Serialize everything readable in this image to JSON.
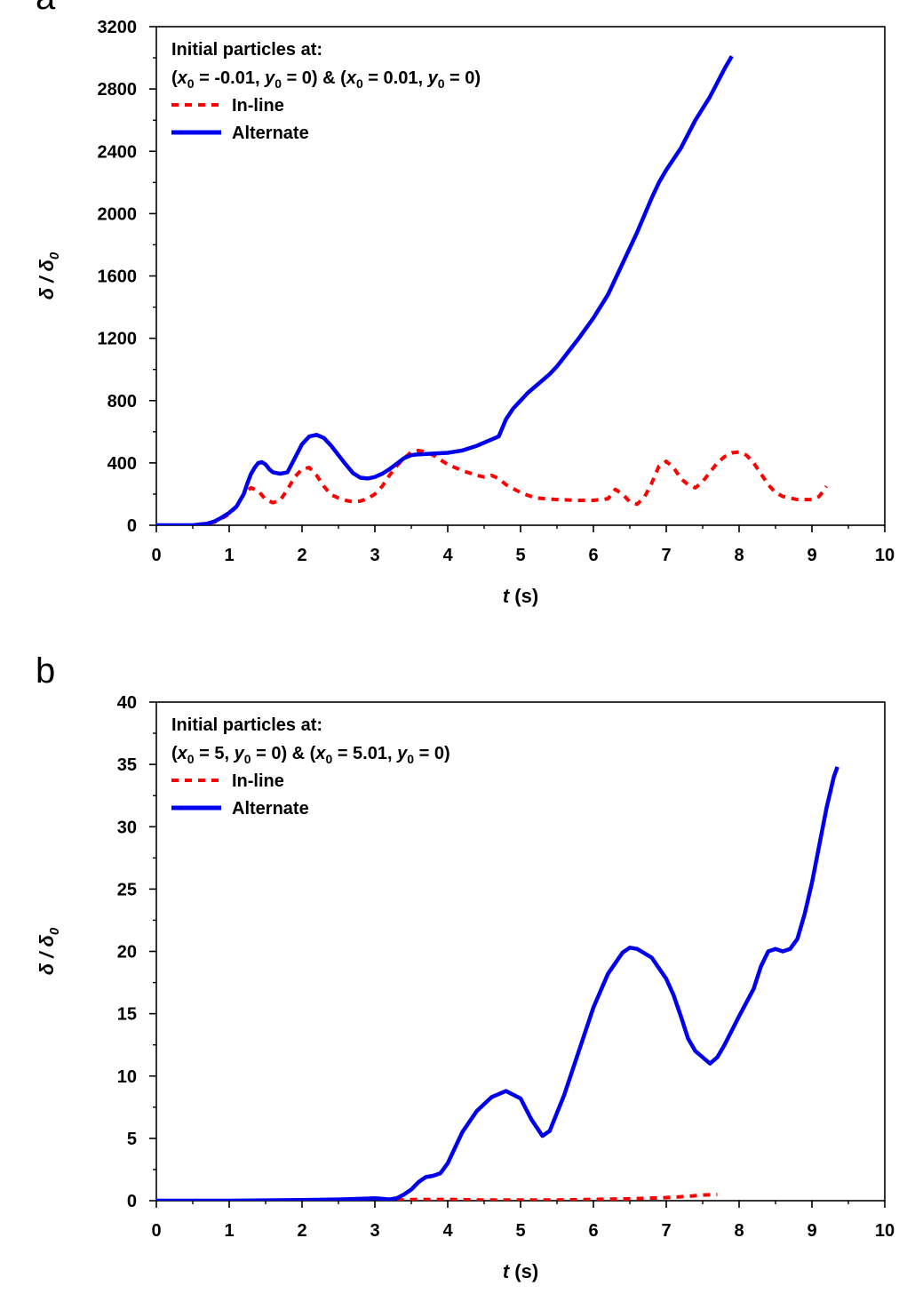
{
  "chart_data": [
    {
      "type": "line",
      "panel": "a",
      "xlabel_var": "t",
      "xlabel_unit": " (s)",
      "ylabel": "δ / δ0",
      "ylabel_main": "δ / δ",
      "ylabel_sub": "0",
      "xlim": [
        0,
        10
      ],
      "ylim": [
        0,
        3200
      ],
      "xticks": [
        0,
        1,
        2,
        3,
        4,
        5,
        6,
        7,
        8,
        9,
        10
      ],
      "yticks": [
        0,
        400,
        800,
        1200,
        1600,
        2000,
        2400,
        2800,
        3200
      ],
      "legend_title": "Initial particles at:",
      "legend_condition": [
        "(",
        "x",
        "0",
        " = -0.01, ",
        "y",
        "0",
        " = 0) & (",
        "x",
        "0",
        " = 0.01, ",
        "y",
        "0",
        " = 0)"
      ],
      "series": [
        {
          "name": "In-line",
          "color": "#ff0000",
          "style": "dotted",
          "x": [
            0,
            0.5,
            0.8,
            1.0,
            1.1,
            1.2,
            1.3,
            1.4,
            1.5,
            1.6,
            1.7,
            1.8,
            1.9,
            2.0,
            2.1,
            2.2,
            2.3,
            2.4,
            2.5,
            2.6,
            2.7,
            2.8,
            2.9,
            3.0,
            3.1,
            3.2,
            3.3,
            3.4,
            3.5,
            3.6,
            3.7,
            3.8,
            3.9,
            4.0,
            4.2,
            4.4,
            4.5,
            4.6,
            4.7,
            4.8,
            5.0,
            5.2,
            5.5,
            5.8,
            6.0,
            6.2,
            6.3,
            6.4,
            6.5,
            6.6,
            6.7,
            6.8,
            6.9,
            7.0,
            7.1,
            7.2,
            7.3,
            7.4,
            7.5,
            7.6,
            7.7,
            7.8,
            7.9,
            8.0,
            8.1,
            8.2,
            8.3,
            8.4,
            8.5,
            8.6,
            8.8,
            9.0,
            9.1,
            9.2
          ],
          "values": [
            0,
            0,
            20,
            70,
            120,
            200,
            240,
            220,
            165,
            145,
            160,
            230,
            310,
            360,
            370,
            320,
            250,
            195,
            175,
            160,
            150,
            155,
            170,
            200,
            250,
            320,
            380,
            430,
            470,
            480,
            470,
            450,
            420,
            390,
            350,
            320,
            310,
            320,
            300,
            260,
            210,
            175,
            165,
            160,
            160,
            170,
            230,
            200,
            150,
            135,
            180,
            270,
            380,
            410,
            370,
            300,
            260,
            240,
            280,
            340,
            400,
            440,
            465,
            470,
            450,
            400,
            330,
            260,
            210,
            185,
            165,
            165,
            185,
            250
          ]
        },
        {
          "name": "Alternate",
          "color": "#0000ee",
          "style": "solid",
          "x": [
            0,
            0.5,
            0.7,
            0.8,
            0.9,
            1.0,
            1.1,
            1.2,
            1.25,
            1.3,
            1.35,
            1.4,
            1.45,
            1.5,
            1.55,
            1.6,
            1.7,
            1.8,
            1.9,
            2.0,
            2.1,
            2.2,
            2.3,
            2.4,
            2.5,
            2.6,
            2.7,
            2.8,
            2.9,
            3.0,
            3.1,
            3.2,
            3.3,
            3.4,
            3.5,
            3.6,
            3.8,
            4.0,
            4.2,
            4.4,
            4.5,
            4.6,
            4.7,
            4.8,
            4.9,
            5.0,
            5.1,
            5.2,
            5.3,
            5.4,
            5.5,
            5.6,
            5.8,
            6.0,
            6.2,
            6.4,
            6.6,
            6.8,
            6.9,
            7.0,
            7.2,
            7.4,
            7.6,
            7.8,
            7.9
          ],
          "values": [
            0,
            0,
            10,
            25,
            50,
            80,
            120,
            200,
            270,
            330,
            370,
            400,
            405,
            390,
            360,
            340,
            330,
            340,
            430,
            520,
            570,
            580,
            560,
            510,
            450,
            390,
            335,
            305,
            300,
            310,
            330,
            360,
            395,
            430,
            450,
            455,
            460,
            465,
            480,
            510,
            530,
            550,
            570,
            680,
            750,
            800,
            850,
            890,
            930,
            970,
            1020,
            1080,
            1200,
            1330,
            1480,
            1680,
            1880,
            2100,
            2200,
            2280,
            2420,
            2600,
            2750,
            2930,
            3010
          ]
        }
      ]
    },
    {
      "type": "line",
      "panel": "b",
      "xlabel_var": "t",
      "xlabel_unit": " (s)",
      "ylabel": "δ / δ0",
      "ylabel_main": "δ / δ",
      "ylabel_sub": "0",
      "xlim": [
        0,
        10
      ],
      "ylim": [
        0,
        40
      ],
      "xticks": [
        0,
        1,
        2,
        3,
        4,
        5,
        6,
        7,
        8,
        9,
        10
      ],
      "yticks": [
        0,
        5,
        10,
        15,
        20,
        25,
        30,
        35,
        40
      ],
      "legend_title": "Initial particles at:",
      "legend_condition": [
        "(",
        "x",
        "0",
        " = 5, ",
        "y",
        "0",
        " = 0) & (",
        "x",
        "0",
        " = 5.01, ",
        "y",
        "0",
        " = 0)"
      ],
      "series": [
        {
          "name": "In-line",
          "color": "#ff0000",
          "style": "dotted",
          "x": [
            3.3,
            3.6,
            4.0,
            4.5,
            5.0,
            5.5,
            6.0,
            6.5,
            7.0,
            7.3,
            7.5,
            7.7
          ],
          "values": [
            0.05,
            0.1,
            0.1,
            0.05,
            0.05,
            0.05,
            0.1,
            0.15,
            0.25,
            0.35,
            0.45,
            0.5
          ]
        },
        {
          "name": "Alternate",
          "color": "#0000ee",
          "style": "solid",
          "x": [
            0,
            1,
            2,
            2.5,
            2.8,
            3.0,
            3.1,
            3.2,
            3.3,
            3.4,
            3.5,
            3.6,
            3.7,
            3.8,
            3.9,
            4.0,
            4.2,
            4.4,
            4.6,
            4.8,
            5.0,
            5.15,
            5.3,
            5.4,
            5.6,
            5.8,
            6.0,
            6.2,
            6.4,
            6.5,
            6.6,
            6.8,
            7.0,
            7.1,
            7.2,
            7.3,
            7.4,
            7.5,
            7.6,
            7.7,
            7.8,
            8.0,
            8.2,
            8.3,
            8.4,
            8.5,
            8.6,
            8.7,
            8.8,
            8.9,
            9.0,
            9.1,
            9.2,
            9.3,
            9.35
          ],
          "values": [
            0,
            0,
            0.05,
            0.1,
            0.15,
            0.2,
            0.15,
            0.1,
            0.2,
            0.5,
            0.9,
            1.5,
            1.9,
            2.0,
            2.2,
            3.0,
            5.5,
            7.2,
            8.3,
            8.8,
            8.2,
            6.5,
            5.2,
            5.6,
            8.5,
            12.0,
            15.5,
            18.2,
            19.9,
            20.3,
            20.2,
            19.5,
            17.8,
            16.5,
            14.8,
            13.0,
            12.0,
            11.5,
            11.0,
            11.5,
            12.5,
            14.8,
            17.0,
            18.8,
            20.0,
            20.2,
            20.0,
            20.2,
            21.0,
            23.0,
            25.5,
            28.5,
            31.5,
            34.0,
            34.8
          ]
        }
      ]
    }
  ]
}
